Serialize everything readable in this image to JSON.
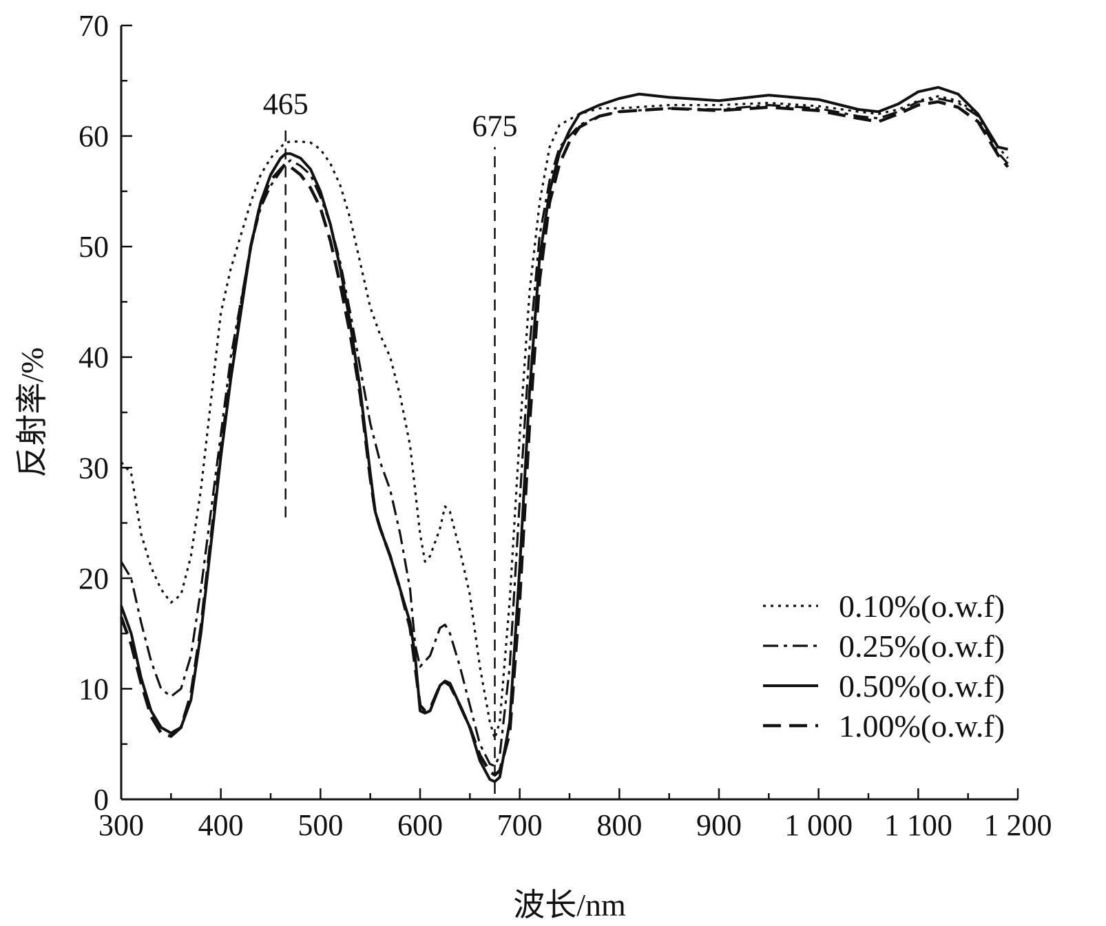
{
  "chart_data": {
    "type": "line",
    "xlabel": "波长/nm",
    "ylabel": "反射率/%",
    "xlim": [
      300,
      1200
    ],
    "ylim": [
      0,
      70
    ],
    "x_ticks": [
      300,
      400,
      500,
      600,
      700,
      800,
      900,
      1000,
      1100,
      1200
    ],
    "x_tick_labels": [
      "300",
      "400",
      "500",
      "600",
      "700",
      "800",
      "900",
      "1 000",
      "1 100",
      "1 200"
    ],
    "y_ticks": [
      0,
      10,
      20,
      30,
      40,
      50,
      60,
      70
    ],
    "y_tick_labels": [
      "0",
      "10",
      "20",
      "30",
      "40",
      "50",
      "60",
      "70"
    ],
    "grid": false,
    "legend_position": "bottom-right",
    "annotations": [
      {
        "label": "465",
        "x": 465,
        "y_from": 25.5,
        "y_to": 61
      },
      {
        "label": "675",
        "x": 675,
        "y_from": 0.5,
        "y_to": 59
      }
    ],
    "series": [
      {
        "name": "0.10%(o.w.f)",
        "style": "dotted",
        "points": [
          [
            300,
            30.5
          ],
          [
            310,
            29.5
          ],
          [
            320,
            24
          ],
          [
            330,
            21
          ],
          [
            340,
            19
          ],
          [
            350,
            17.8
          ],
          [
            360,
            18.5
          ],
          [
            370,
            22
          ],
          [
            380,
            28
          ],
          [
            390,
            36
          ],
          [
            400,
            44
          ],
          [
            410,
            48
          ],
          [
            420,
            51
          ],
          [
            430,
            54
          ],
          [
            440,
            56.5
          ],
          [
            450,
            58
          ],
          [
            460,
            59
          ],
          [
            465,
            59.4
          ],
          [
            470,
            59.5
          ],
          [
            480,
            59.5
          ],
          [
            490,
            59.4
          ],
          [
            500,
            58.8
          ],
          [
            510,
            57.5
          ],
          [
            520,
            55.5
          ],
          [
            530,
            52.5
          ],
          [
            540,
            48.5
          ],
          [
            550,
            44.5
          ],
          [
            560,
            42
          ],
          [
            570,
            40
          ],
          [
            580,
            36.5
          ],
          [
            590,
            32
          ],
          [
            600,
            24
          ],
          [
            605,
            21.5
          ],
          [
            610,
            22
          ],
          [
            620,
            24.5
          ],
          [
            625,
            26.5
          ],
          [
            630,
            26
          ],
          [
            640,
            22.5
          ],
          [
            650,
            18.5
          ],
          [
            660,
            12
          ],
          [
            670,
            7
          ],
          [
            675,
            5.5
          ],
          [
            680,
            7
          ],
          [
            690,
            18
          ],
          [
            700,
            33
          ],
          [
            710,
            46
          ],
          [
            720,
            54
          ],
          [
            730,
            59
          ],
          [
            740,
            61
          ],
          [
            750,
            61.5
          ],
          [
            760,
            62
          ],
          [
            780,
            62.5
          ],
          [
            800,
            62.5
          ],
          [
            850,
            62.8
          ],
          [
            900,
            62.8
          ],
          [
            950,
            63
          ],
          [
            1000,
            62.7
          ],
          [
            1040,
            62.2
          ],
          [
            1060,
            62
          ],
          [
            1080,
            62.4
          ],
          [
            1100,
            63.2
          ],
          [
            1120,
            63.6
          ],
          [
            1140,
            63.2
          ],
          [
            1160,
            62
          ],
          [
            1180,
            59
          ],
          [
            1190,
            58
          ]
        ]
      },
      {
        "name": "0.25%(o.w.f)",
        "style": "dashdot",
        "points": [
          [
            300,
            21.5
          ],
          [
            310,
            20
          ],
          [
            320,
            16
          ],
          [
            330,
            12.5
          ],
          [
            340,
            10
          ],
          [
            350,
            9.3
          ],
          [
            360,
            10
          ],
          [
            370,
            13
          ],
          [
            380,
            19
          ],
          [
            390,
            26
          ],
          [
            400,
            33
          ],
          [
            410,
            40
          ],
          [
            420,
            45
          ],
          [
            430,
            50
          ],
          [
            440,
            53.5
          ],
          [
            450,
            55.5
          ],
          [
            460,
            56.8
          ],
          [
            465,
            57.5
          ],
          [
            470,
            57.8
          ],
          [
            480,
            57.3
          ],
          [
            490,
            56.5
          ],
          [
            500,
            54.5
          ],
          [
            510,
            52
          ],
          [
            520,
            48.5
          ],
          [
            530,
            44
          ],
          [
            540,
            39
          ],
          [
            550,
            34
          ],
          [
            560,
            30.5
          ],
          [
            570,
            28
          ],
          [
            580,
            24
          ],
          [
            590,
            19
          ],
          [
            595,
            14
          ],
          [
            600,
            12
          ],
          [
            610,
            13
          ],
          [
            620,
            15.5
          ],
          [
            625,
            15.8
          ],
          [
            630,
            15
          ],
          [
            640,
            12
          ],
          [
            650,
            8.5
          ],
          [
            660,
            5
          ],
          [
            670,
            3.2
          ],
          [
            675,
            3
          ],
          [
            680,
            4
          ],
          [
            690,
            12
          ],
          [
            700,
            27
          ],
          [
            710,
            41
          ],
          [
            720,
            51
          ],
          [
            730,
            56
          ],
          [
            740,
            59
          ],
          [
            750,
            60
          ],
          [
            760,
            61
          ],
          [
            780,
            61.8
          ],
          [
            800,
            62.2
          ],
          [
            850,
            62.5
          ],
          [
            900,
            62.4
          ],
          [
            950,
            62.8
          ],
          [
            1000,
            62.5
          ],
          [
            1040,
            61.8
          ],
          [
            1060,
            61.6
          ],
          [
            1080,
            62.2
          ],
          [
            1100,
            63.1
          ],
          [
            1120,
            63.4
          ],
          [
            1140,
            63
          ],
          [
            1160,
            61.8
          ],
          [
            1180,
            58.5
          ],
          [
            1190,
            57.5
          ]
        ]
      },
      {
        "name": "0.50%(o.w.f)",
        "style": "solid",
        "points": [
          [
            300,
            17.5
          ],
          [
            310,
            15
          ],
          [
            320,
            11
          ],
          [
            330,
            8
          ],
          [
            340,
            6.5
          ],
          [
            350,
            6
          ],
          [
            360,
            6.5
          ],
          [
            370,
            9
          ],
          [
            380,
            15
          ],
          [
            390,
            23
          ],
          [
            400,
            31
          ],
          [
            410,
            38
          ],
          [
            420,
            44
          ],
          [
            430,
            50
          ],
          [
            440,
            54
          ],
          [
            450,
            56.5
          ],
          [
            460,
            58
          ],
          [
            465,
            58.4
          ],
          [
            470,
            58.4
          ],
          [
            480,
            58
          ],
          [
            490,
            57
          ],
          [
            500,
            55
          ],
          [
            510,
            52
          ],
          [
            520,
            48
          ],
          [
            530,
            43
          ],
          [
            540,
            37
          ],
          [
            550,
            29.5
          ],
          [
            555,
            26
          ],
          [
            560,
            24.5
          ],
          [
            570,
            22
          ],
          [
            580,
            19
          ],
          [
            590,
            16
          ],
          [
            595,
            13
          ],
          [
            600,
            8
          ],
          [
            605,
            7.8
          ],
          [
            610,
            8
          ],
          [
            620,
            10.3
          ],
          [
            625,
            10.7
          ],
          [
            630,
            10.5
          ],
          [
            640,
            8.5
          ],
          [
            650,
            6.5
          ],
          [
            660,
            3.5
          ],
          [
            670,
            1.8
          ],
          [
            675,
            1.6
          ],
          [
            680,
            2
          ],
          [
            690,
            7
          ],
          [
            700,
            21
          ],
          [
            710,
            37
          ],
          [
            720,
            49
          ],
          [
            730,
            55
          ],
          [
            740,
            58.5
          ],
          [
            750,
            60.5
          ],
          [
            760,
            62
          ],
          [
            780,
            62.8
          ],
          [
            800,
            63.4
          ],
          [
            820,
            63.8
          ],
          [
            850,
            63.5
          ],
          [
            900,
            63.2
          ],
          [
            950,
            63.7
          ],
          [
            1000,
            63.3
          ],
          [
            1040,
            62.4
          ],
          [
            1060,
            62.2
          ],
          [
            1080,
            62.9
          ],
          [
            1100,
            64
          ],
          [
            1120,
            64.4
          ],
          [
            1140,
            63.8
          ],
          [
            1160,
            62
          ],
          [
            1180,
            59
          ],
          [
            1190,
            58.8
          ]
        ]
      },
      {
        "name": "1.00%(o.w.f)",
        "style": "dashed",
        "points": [
          [
            300,
            16.5
          ],
          [
            310,
            14
          ],
          [
            320,
            10.5
          ],
          [
            330,
            7.5
          ],
          [
            340,
            6
          ],
          [
            350,
            5.7
          ],
          [
            360,
            6.5
          ],
          [
            370,
            9.5
          ],
          [
            380,
            15.5
          ],
          [
            390,
            23.5
          ],
          [
            400,
            31.5
          ],
          [
            410,
            38.5
          ],
          [
            420,
            44.5
          ],
          [
            430,
            50
          ],
          [
            440,
            54
          ],
          [
            450,
            56
          ],
          [
            460,
            57
          ],
          [
            465,
            57.5
          ],
          [
            470,
            57.2
          ],
          [
            480,
            56.5
          ],
          [
            490,
            55.3
          ],
          [
            500,
            53.5
          ],
          [
            510,
            50.5
          ],
          [
            520,
            46.5
          ],
          [
            530,
            42
          ],
          [
            540,
            36.5
          ],
          [
            550,
            29
          ],
          [
            555,
            26
          ],
          [
            560,
            24.5
          ],
          [
            570,
            22
          ],
          [
            580,
            19
          ],
          [
            590,
            15.5
          ],
          [
            600,
            8.5
          ],
          [
            605,
            8
          ],
          [
            610,
            8.2
          ],
          [
            620,
            10.3
          ],
          [
            625,
            10.6
          ],
          [
            630,
            10.3
          ],
          [
            640,
            8.5
          ],
          [
            650,
            6.5
          ],
          [
            660,
            4
          ],
          [
            670,
            2.5
          ],
          [
            675,
            2.2
          ],
          [
            680,
            2.6
          ],
          [
            690,
            6
          ],
          [
            700,
            18
          ],
          [
            710,
            34
          ],
          [
            720,
            47
          ],
          [
            730,
            54
          ],
          [
            740,
            57.5
          ],
          [
            750,
            59.5
          ],
          [
            760,
            60.8
          ],
          [
            780,
            61.8
          ],
          [
            800,
            62.2
          ],
          [
            850,
            62.5
          ],
          [
            900,
            62.3
          ],
          [
            950,
            62.6
          ],
          [
            1000,
            62.3
          ],
          [
            1040,
            61.6
          ],
          [
            1060,
            61.3
          ],
          [
            1080,
            62
          ],
          [
            1100,
            62.8
          ],
          [
            1120,
            63.1
          ],
          [
            1140,
            62.6
          ],
          [
            1160,
            61.3
          ],
          [
            1180,
            58.3
          ],
          [
            1190,
            57.2
          ]
        ]
      }
    ]
  }
}
